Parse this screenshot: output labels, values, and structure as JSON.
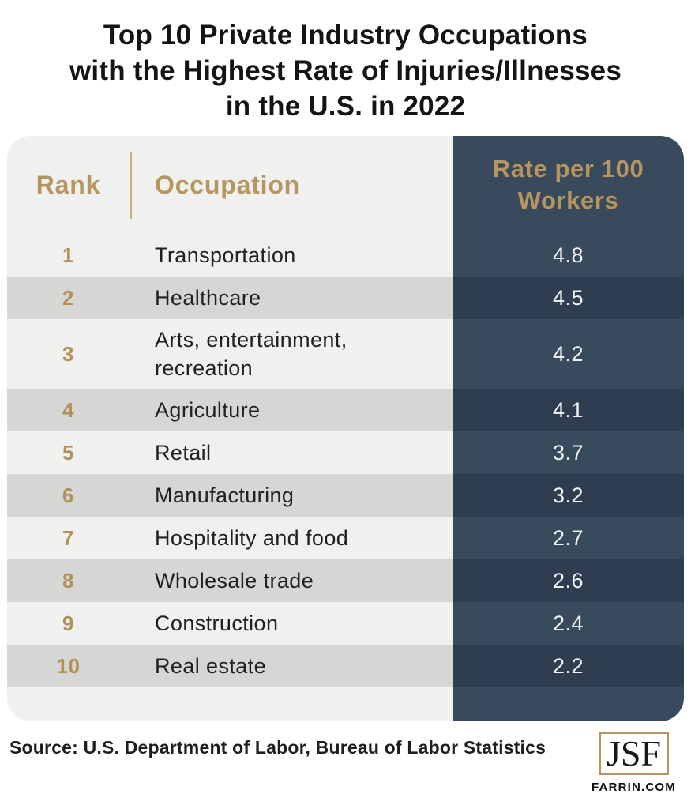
{
  "title": {
    "line1": "Top 10 Private Industry Occupations",
    "line2": "with the Highest Rate of Injuries/Illnesses",
    "line3": "in the U.S. in 2022"
  },
  "table": {
    "rank_header": "Rank",
    "occupation_header": "Occupation",
    "rate_header": "Rate per 100 Workers"
  },
  "footer": {
    "source": "Source: U.S. Department of Labor, Bureau of Labor Statistics",
    "logo": {
      "initials": "JSF",
      "domain": "FARRIN.COM"
    }
  },
  "colors": {
    "gold": "#b6955f",
    "gold_rank": "#b2905a",
    "navy": "#394a5c",
    "navy_dark": "#2e3e50",
    "row_light": "#f0f0ee",
    "row_dark": "#d6d6d4",
    "rate_text": "#f2f3f4",
    "title_text": "#141414"
  },
  "chart_data": {
    "type": "table",
    "title": "Top 10 Private Industry Occupations with the Highest Rate of Injuries/Illnesses in the U.S. in 2022",
    "columns": [
      "Rank",
      "Occupation",
      "Rate per 100 Workers"
    ],
    "rows": [
      {
        "rank": "1",
        "occupation": "Transportation",
        "rate": "4.8"
      },
      {
        "rank": "2",
        "occupation": "Healthcare",
        "rate": "4.5"
      },
      {
        "rank": "3",
        "occupation": "Arts, entertainment, recreation",
        "rate": "4.2"
      },
      {
        "rank": "4",
        "occupation": "Agriculture",
        "rate": "4.1"
      },
      {
        "rank": "5",
        "occupation": "Retail",
        "rate": "3.7"
      },
      {
        "rank": "6",
        "occupation": "Manufacturing",
        "rate": "3.2"
      },
      {
        "rank": "7",
        "occupation": "Hospitality and food",
        "rate": "2.7"
      },
      {
        "rank": "8",
        "occupation": "Wholesale trade",
        "rate": "2.6"
      },
      {
        "rank": "9",
        "occupation": "Construction",
        "rate": "2.4"
      },
      {
        "rank": "10",
        "occupation": "Real estate",
        "rate": "2.2"
      }
    ],
    "source": "U.S. Department of Labor, Bureau of Labor Statistics"
  }
}
